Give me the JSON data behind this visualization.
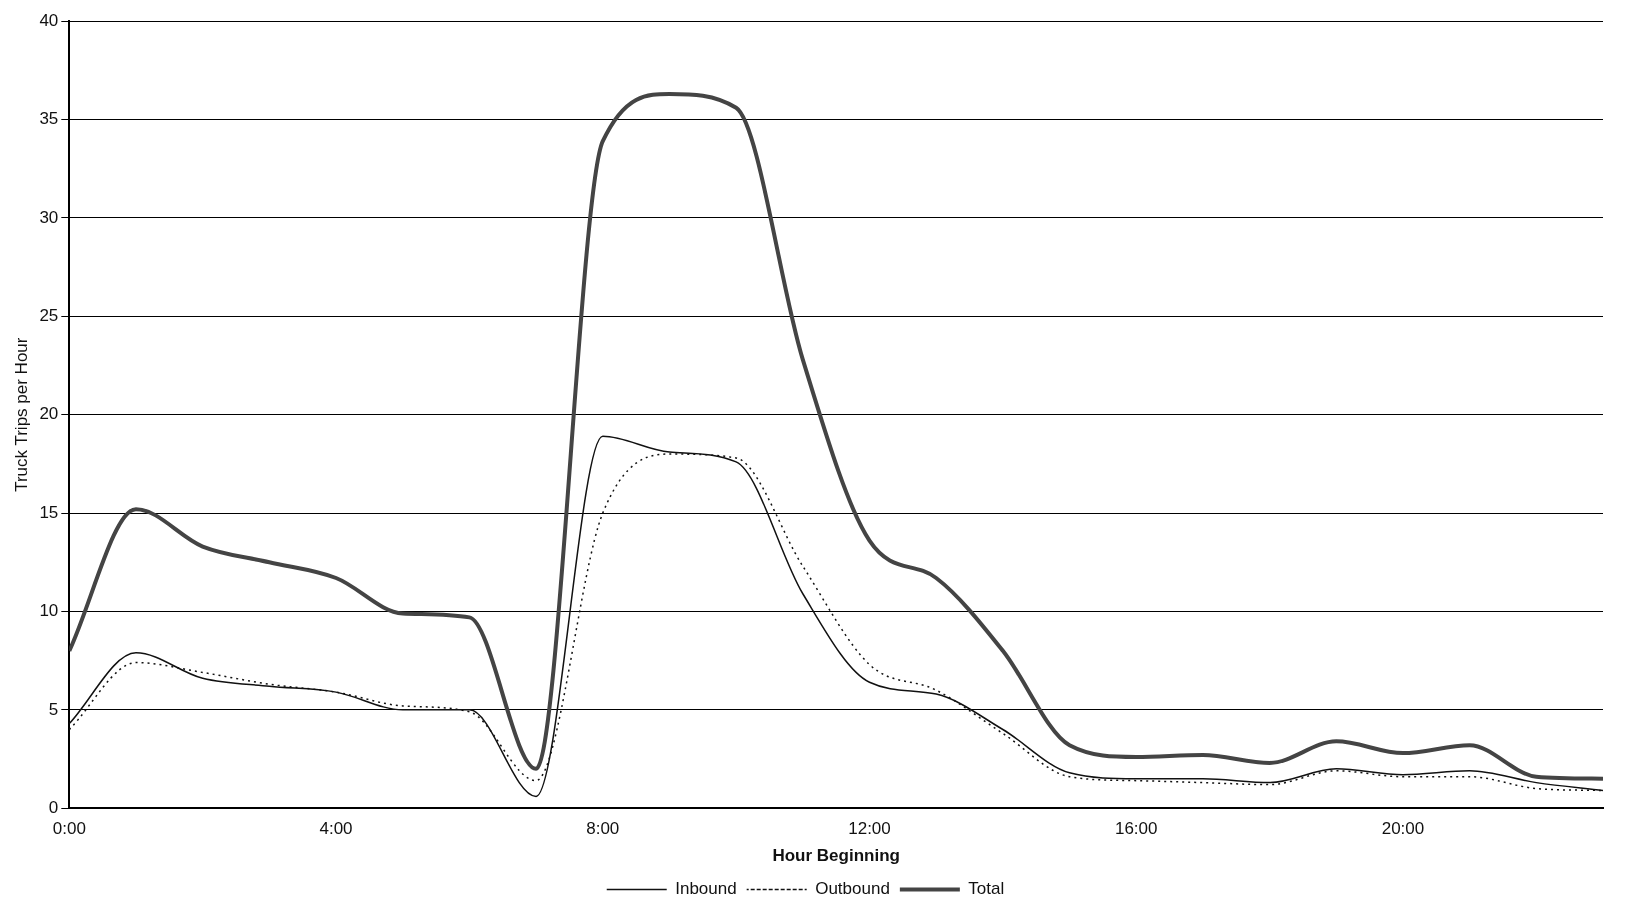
{
  "chart_data": {
    "type": "line",
    "xlabel": "Hour Beginning",
    "ylabel": "Truck Trips per Hour",
    "x": [
      0,
      1,
      2,
      3,
      4,
      5,
      6,
      7,
      8,
      9,
      10,
      11,
      12,
      13,
      14,
      15,
      16,
      17,
      18,
      19,
      20,
      21,
      22,
      23
    ],
    "xlim": [
      0,
      23
    ],
    "xticks": [
      {
        "value": 0,
        "label": "0:00"
      },
      {
        "value": 4,
        "label": "4:00"
      },
      {
        "value": 8,
        "label": "8:00"
      },
      {
        "value": 12,
        "label": "12:00"
      },
      {
        "value": 16,
        "label": "16:00"
      },
      {
        "value": 20,
        "label": "20:00"
      }
    ],
    "ylim": [
      0,
      40
    ],
    "yticks": [
      0,
      5,
      10,
      15,
      20,
      25,
      30,
      35,
      40
    ],
    "grid": "y",
    "legend": "bottom",
    "marker": "none",
    "series": [
      {
        "name": "Inbound",
        "color": "#111111",
        "line_style": "solid",
        "values": [
          4.3,
          7.9,
          6.6,
          6.2,
          5.9,
          5.0,
          5.0,
          0.6,
          18.9,
          18.1,
          17.6,
          10.9,
          6.4,
          5.8,
          4.0,
          1.8,
          1.5,
          1.5,
          1.3,
          2.0,
          1.7,
          1.9,
          1.3,
          0.9
        ]
      },
      {
        "name": "Outbound",
        "color": "#111111",
        "line_style": "dotted",
        "values": [
          4.0,
          7.4,
          6.9,
          6.3,
          5.9,
          5.2,
          4.9,
          1.4,
          15.0,
          18.0,
          17.8,
          12.3,
          7.3,
          6.0,
          3.8,
          1.6,
          1.4,
          1.3,
          1.2,
          1.9,
          1.6,
          1.6,
          1.0,
          0.9
        ]
      },
      {
        "name": "Total",
        "color": "#444444",
        "line_style": "solid",
        "values": [
          8.0,
          15.2,
          13.3,
          12.5,
          11.7,
          9.9,
          9.7,
          2.0,
          33.9,
          36.3,
          35.6,
          22.8,
          13.6,
          11.7,
          8.0,
          3.2,
          2.6,
          2.7,
          2.3,
          3.4,
          2.8,
          3.2,
          1.6,
          1.5
        ]
      }
    ]
  }
}
